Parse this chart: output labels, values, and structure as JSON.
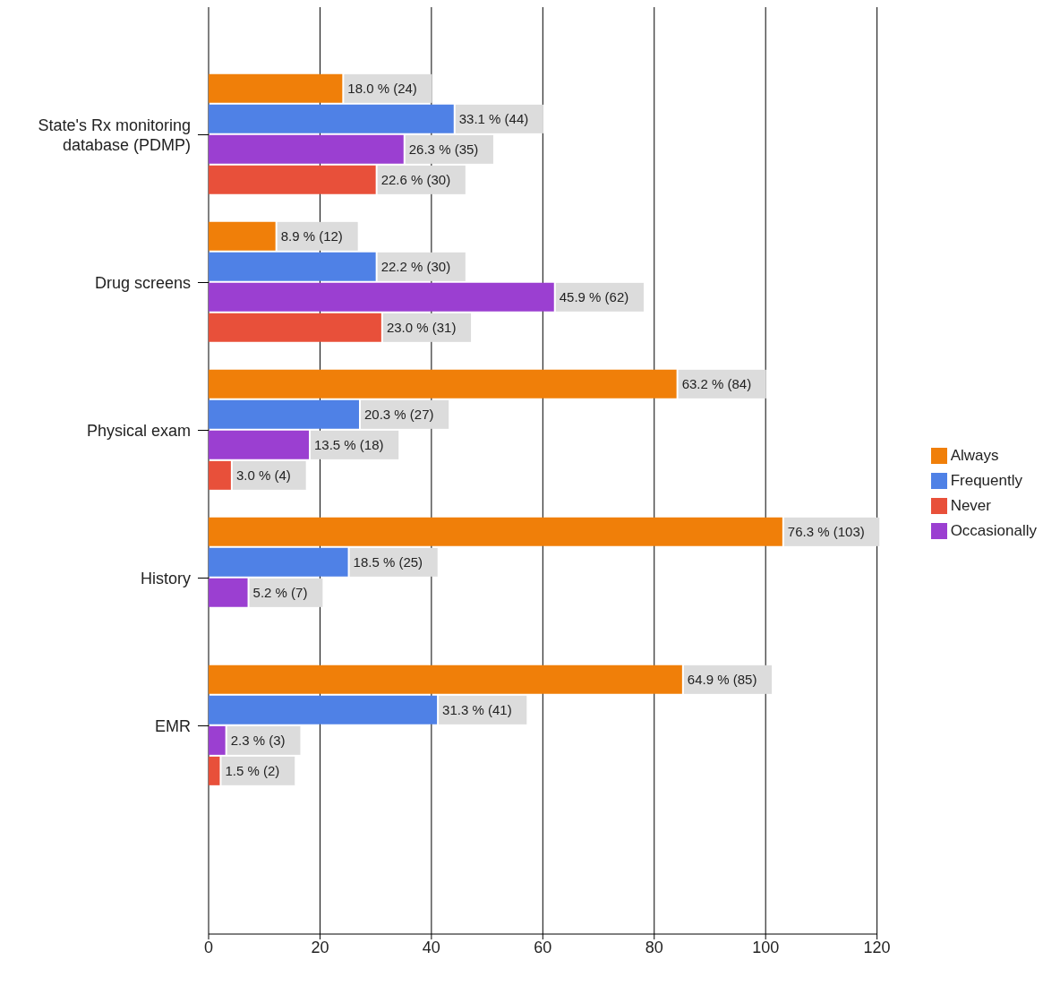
{
  "chart_data": {
    "type": "bar",
    "orientation": "horizontal",
    "categories": [
      "State's Rx monitoring database (PDMP)",
      "Drug screens",
      "Physical exam",
      "History",
      "EMR"
    ],
    "series": [
      {
        "name": "Always",
        "color": "#f07f09",
        "values": [
          24,
          12,
          84,
          103,
          85
        ],
        "value_labels": [
          "18.0 % (24)",
          "8.9 % (12)",
          "63.2 % (84)",
          "76.3 % (103)",
          "64.9 % (85)"
        ]
      },
      {
        "name": "Frequently",
        "color": "#4f81e6",
        "values": [
          44,
          30,
          27,
          25,
          41
        ],
        "value_labels": [
          "33.1 % (44)",
          "22.2 % (30)",
          "20.3 % (27)",
          "18.5 % (25)",
          "31.3 % (41)"
        ]
      },
      {
        "name": "Occasionally",
        "color": "#9b3fd1",
        "values": [
          35,
          62,
          18,
          7,
          3
        ],
        "value_labels": [
          "26.3 % (35)",
          "45.9 % (62)",
          "13.5 % (18)",
          "5.2 % (7)",
          "2.3 % (3)"
        ]
      },
      {
        "name": "Never",
        "color": "#e8503a",
        "values": [
          30,
          31,
          4,
          null,
          2
        ],
        "value_labels": [
          "22.6 % (30)",
          "23.0 % (31)",
          "3.0 % (4)",
          null,
          "1.5 % (2)"
        ]
      }
    ],
    "xlim": [
      0,
      120
    ],
    "xticks": [
      0,
      20,
      40,
      60,
      80,
      100,
      120
    ],
    "grid": "x",
    "legend": "right"
  }
}
